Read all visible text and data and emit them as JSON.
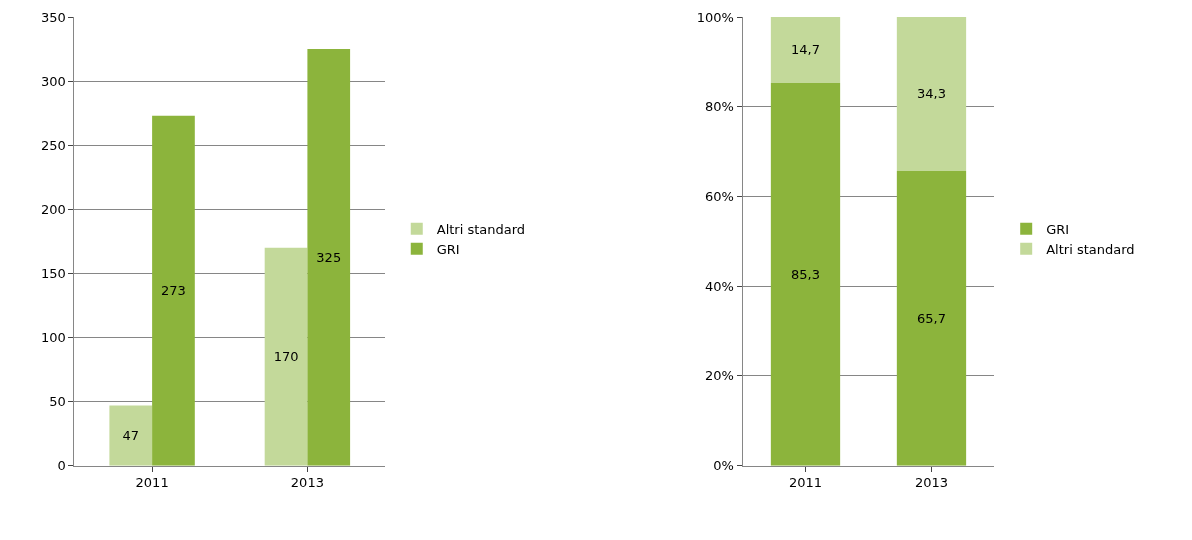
{
  "chart_data": [
    {
      "type": "bar",
      "categories": [
        "2011",
        "2013"
      ],
      "series": [
        {
          "name": "Altri standard",
          "color": "#c3d99a",
          "values": [
            47,
            170
          ]
        },
        {
          "name": "GRI",
          "color": "#8cb43c",
          "values": [
            273,
            325
          ]
        }
      ],
      "ylim": [
        0,
        350
      ],
      "yticks": [
        0,
        50,
        100,
        150,
        200,
        250,
        300,
        350
      ],
      "grid": "y",
      "legend": "right",
      "data_labels": true
    },
    {
      "type": "bar",
      "categories": [
        "2011",
        "2013"
      ],
      "stacked": true,
      "series": [
        {
          "name": "GRI",
          "color": "#8cb43c",
          "values": [
            85.3,
            65.7
          ],
          "value_labels": [
            "85,3",
            "65,7"
          ]
        },
        {
          "name": "Altri standard",
          "color": "#c3d99a",
          "values": [
            14.7,
            34.3
          ],
          "value_labels": [
            "14,7",
            "34,3"
          ]
        }
      ],
      "ylim": [
        0,
        100
      ],
      "yticks": [
        {
          "value": 0,
          "label": "0%"
        },
        {
          "value": 20,
          "label": "20%"
        },
        {
          "value": 40,
          "label": "40%"
        },
        {
          "value": 60,
          "label": "60%"
        },
        {
          "value": 80,
          "label": "80%"
        },
        {
          "value": 100,
          "label": "100%"
        }
      ],
      "grid": "y",
      "legend": "right"
    }
  ]
}
